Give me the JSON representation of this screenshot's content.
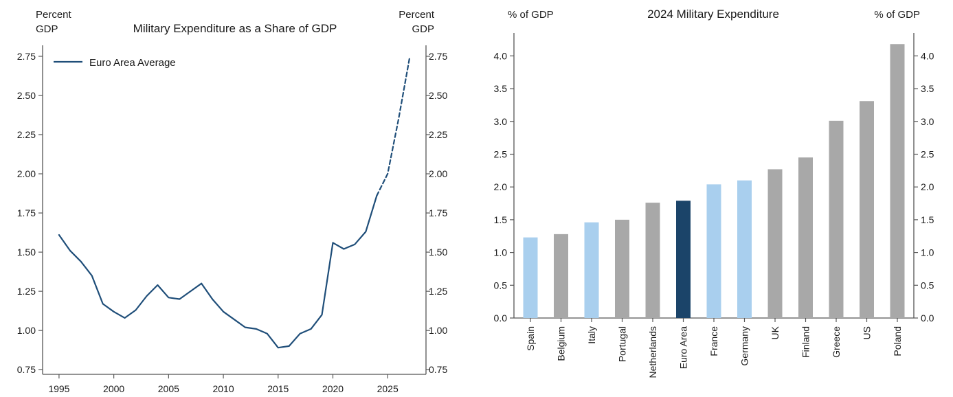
{
  "chart_data": [
    {
      "type": "line",
      "title": "Military Expenditure as a Share of GDP",
      "ylabel_left": "Percent\nGDP",
      "ylabel_right": "Percent\nGDP",
      "xlim": [
        1993.5,
        2028.5
      ],
      "ylim": [
        0.72,
        2.82
      ],
      "xticks": [
        1995,
        2000,
        2005,
        2010,
        2015,
        2020,
        2025
      ],
      "yticks": [
        0.75,
        1.0,
        1.25,
        1.5,
        1.75,
        2.0,
        2.25,
        2.5,
        2.75
      ],
      "grid": false,
      "legend": "top-left",
      "series": [
        {
          "name": "Euro Area Average",
          "color": "#1f4e79",
          "style": "solid",
          "x": [
            1995,
            1996,
            1997,
            1998,
            1999,
            2000,
            2001,
            2002,
            2003,
            2004,
            2005,
            2006,
            2007,
            2008,
            2009,
            2010,
            2011,
            2012,
            2013,
            2014,
            2015,
            2016,
            2017,
            2018,
            2019,
            2020,
            2021,
            2022,
            2023,
            2024
          ],
          "y": [
            1.61,
            1.51,
            1.44,
            1.35,
            1.17,
            1.12,
            1.08,
            1.13,
            1.22,
            1.29,
            1.21,
            1.2,
            1.25,
            1.3,
            1.2,
            1.12,
            1.07,
            1.02,
            1.01,
            0.98,
            0.89,
            0.9,
            0.98,
            1.01,
            1.1,
            1.56,
            1.52,
            1.55,
            1.63,
            1.86
          ]
        },
        {
          "name": "",
          "color": "#1f4e79",
          "style": "dashed",
          "x": [
            2024,
            2025,
            2026,
            2027
          ],
          "y": [
            1.86,
            2.0,
            2.35,
            2.74
          ]
        }
      ]
    },
    {
      "type": "bar",
      "title": "2024 Military Expenditure",
      "ylabel_left": "% of GDP",
      "ylabel_right": "% of GDP",
      "ylim": [
        0,
        4.35
      ],
      "yticks": [
        "0.0",
        "0.5",
        "1.0",
        "1.5",
        "2.0",
        "2.5",
        "3.0",
        "3.5",
        "4.0"
      ],
      "grid": false,
      "categories": [
        "Spain",
        "Belgium",
        "Italy",
        "Portugal",
        "Netherlands",
        "Euro Area",
        "France",
        "Germany",
        "UK",
        "Finland",
        "Greece",
        "US",
        "Poland"
      ],
      "values": [
        1.23,
        1.28,
        1.46,
        1.5,
        1.76,
        1.79,
        2.04,
        2.1,
        2.27,
        2.45,
        3.01,
        3.31,
        4.18
      ],
      "colors": [
        "#a9cfee",
        "#a8a8a8",
        "#a9cfee",
        "#a8a8a8",
        "#a8a8a8",
        "#1b4469",
        "#a9cfee",
        "#a9cfee",
        "#a8a8a8",
        "#a8a8a8",
        "#a8a8a8",
        "#a8a8a8",
        "#a8a8a8"
      ]
    }
  ]
}
